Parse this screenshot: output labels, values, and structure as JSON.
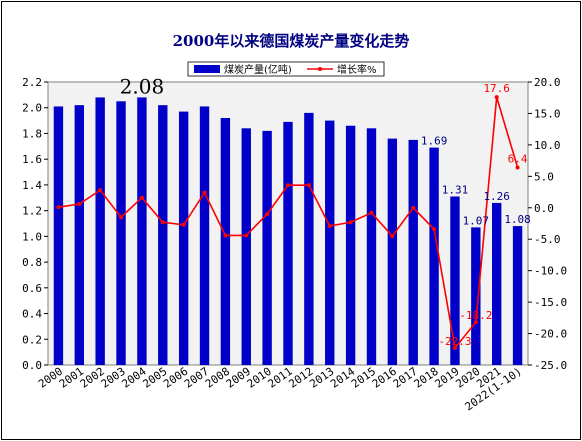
{
  "chart_data": {
    "type": "bar",
    "title": "2000年以来德国煤炭产量变化走势",
    "categories": [
      "2000",
      "2001",
      "2002",
      "2003",
      "2004",
      "2005",
      "2006",
      "2007",
      "2008",
      "2009",
      "2010",
      "2011",
      "2012",
      "2013",
      "2014",
      "2015",
      "2016",
      "2017",
      "2018",
      "2019",
      "2020",
      "2021",
      "2022(1-10)"
    ],
    "series": [
      {
        "name": "煤炭产量(亿吨)",
        "type": "bar",
        "axis": "left",
        "color": "#0000C8",
        "values": [
          2.01,
          2.02,
          2.08,
          2.05,
          2.08,
          2.02,
          1.97,
          2.01,
          1.92,
          1.84,
          1.82,
          1.89,
          1.96,
          1.9,
          1.86,
          1.84,
          1.76,
          1.75,
          1.69,
          1.31,
          1.07,
          1.26,
          1.08
        ]
      },
      {
        "name": "增长率%",
        "type": "line",
        "axis": "right",
        "color": "#FF0000",
        "values": [
          0.1,
          0.6,
          2.8,
          -1.5,
          1.6,
          -2.3,
          -2.7,
          2.4,
          -4.4,
          -4.4,
          -1.0,
          3.6,
          3.6,
          -2.9,
          -2.3,
          -0.8,
          -4.5,
          0.0,
          -3.4,
          -22.3,
          -18.2,
          17.6,
          6.4
        ]
      }
    ],
    "data_labels": [
      {
        "category": "2004",
        "series": "bar",
        "text": "2.08",
        "style": "large"
      },
      {
        "category": "2018",
        "series": "bar",
        "text": "1.69"
      },
      {
        "category": "2019",
        "series": "bar",
        "text": "1.31"
      },
      {
        "category": "2020",
        "series": "bar",
        "text": "1.07"
      },
      {
        "category": "2021",
        "series": "bar",
        "text": "1.26"
      },
      {
        "category": "2022(1-10)",
        "series": "bar",
        "text": "1.08"
      },
      {
        "category": "2019",
        "series": "line",
        "text": "-22.3"
      },
      {
        "category": "2020",
        "series": "line",
        "text": "-18.2"
      },
      {
        "category": "2021",
        "series": "line",
        "text": "17.6"
      },
      {
        "category": "2022(1-10)",
        "series": "line",
        "text": "6.4"
      }
    ],
    "y_left": {
      "min": 0,
      "max": 2.2,
      "step": 0.2,
      "tick_labels": [
        "0.0",
        "0.2",
        "0.4",
        "0.6",
        "0.8",
        "1.0",
        "1.2",
        "1.4",
        "1.6",
        "1.8",
        "2.0",
        "2.2"
      ]
    },
    "y_right": {
      "min": -25,
      "max": 20,
      "step": 5,
      "tick_labels": [
        "-25.0",
        "-20.0",
        "-15.0",
        "-10.0",
        "-5.0",
        "0.0",
        "5.0",
        "10.0",
        "15.0",
        "20.0"
      ]
    },
    "grid": false,
    "legend_position": "top-center",
    "plot_background": "#F2F2F2"
  }
}
